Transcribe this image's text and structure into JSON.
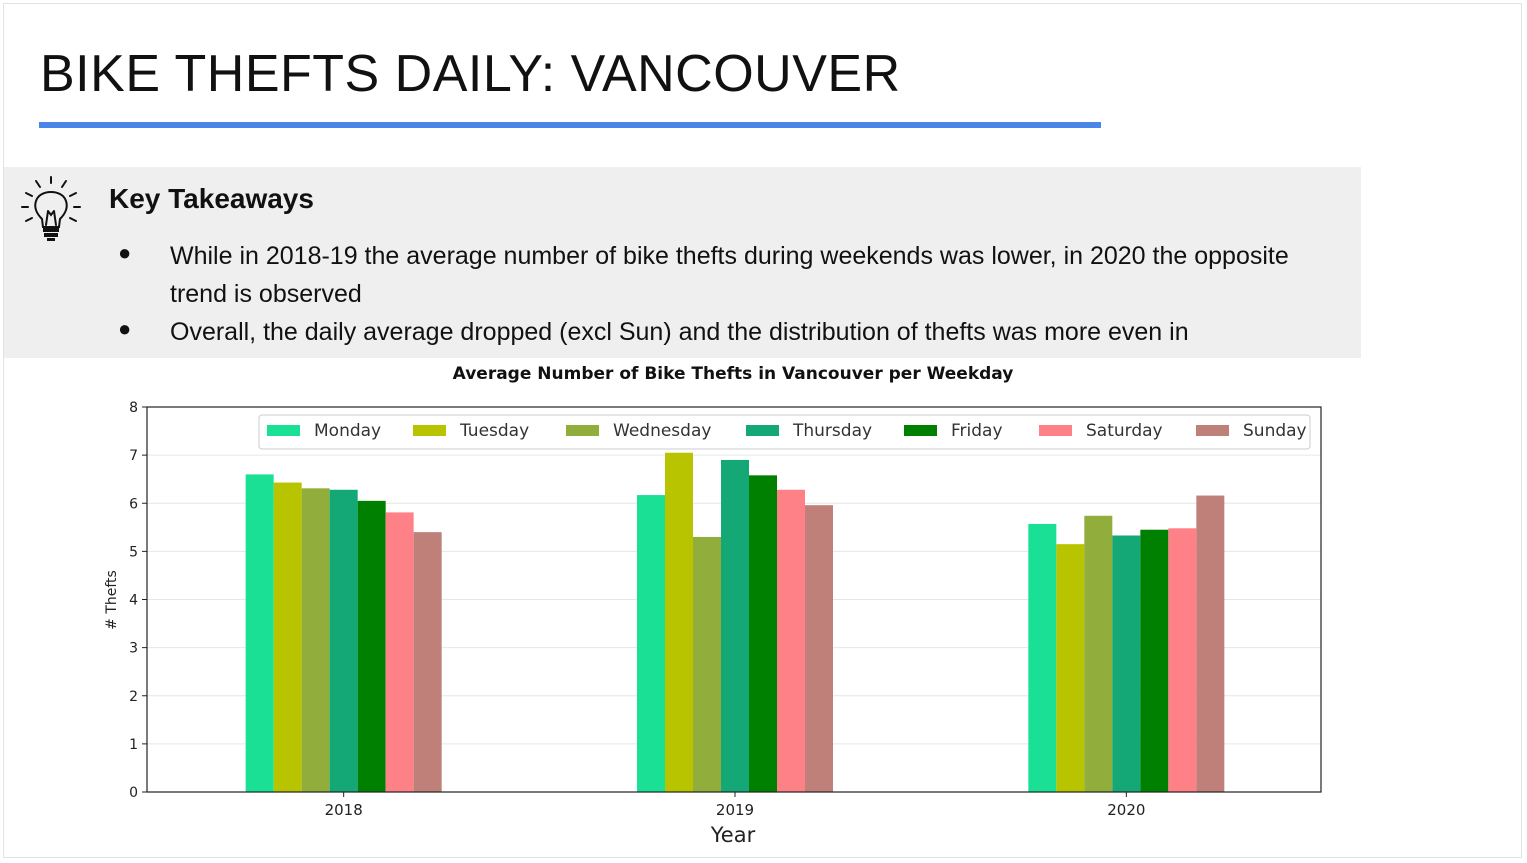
{
  "slide": {
    "title": "BIKE THEFTS DAILY: VANCOUVER",
    "accent_color": "#4a86e8",
    "panel_color": "#efefef"
  },
  "takeaways": {
    "icon": "lightbulb-icon",
    "heading": "Key Takeaways",
    "bullets": [
      "While in 2018-19 the average number of bike thefts during weekends was lower, in 2020 the opposite trend is observed",
      "Overall, the daily average dropped  (excl Sun) and the distribution of thefts was more even in"
    ]
  },
  "chart_data": {
    "type": "bar",
    "title": "Average Number of Bike Thefts in Vancouver per Weekday",
    "xlabel": "Year",
    "ylabel": "# Thefts",
    "categories": [
      "2018",
      "2019",
      "2020"
    ],
    "ylim": [
      0,
      8
    ],
    "yticks": [
      "0",
      "1",
      "2",
      "3",
      "4",
      "5",
      "6",
      "7",
      "8"
    ],
    "grid": true,
    "legend_position": "top",
    "series": [
      {
        "name": "Monday",
        "color": "#1ae095",
        "values": [
          6.6,
          6.17,
          5.57
        ]
      },
      {
        "name": "Tuesday",
        "color": "#b8c400",
        "values": [
          6.43,
          7.05,
          5.15
        ]
      },
      {
        "name": "Wednesday",
        "color": "#91ad3c",
        "values": [
          6.31,
          5.3,
          5.74
        ]
      },
      {
        "name": "Thursday",
        "color": "#14a876",
        "values": [
          6.28,
          6.9,
          5.33
        ]
      },
      {
        "name": "Friday",
        "color": "#008000",
        "values": [
          6.05,
          6.58,
          5.45
        ]
      },
      {
        "name": "Saturday",
        "color": "#ff8188",
        "values": [
          5.81,
          6.28,
          5.48
        ]
      },
      {
        "name": "Sunday",
        "color": "#c0807a",
        "values": [
          5.4,
          5.96,
          6.16
        ]
      }
    ]
  }
}
